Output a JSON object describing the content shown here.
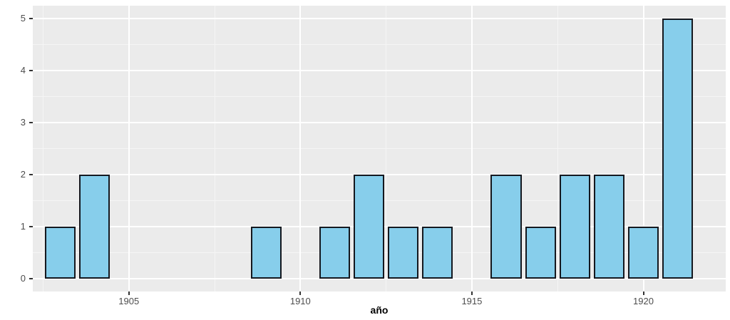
{
  "chart": {
    "colors": {
      "panel_bg": "#EBEBEB",
      "grid_major": "#FFFFFF",
      "grid_minor": "#F5F5F5",
      "bar_fill": "#87CEEB",
      "bar_stroke": "#14181F",
      "tick_mark": "#333333",
      "tick_label": "#4D4D4D",
      "axis_title": "#000000"
    }
  },
  "chart_data": {
    "type": "bar",
    "title": "",
    "xlabel": "año",
    "ylabel": "",
    "x": [
      1903,
      1904,
      1909,
      1911,
      1912,
      1913,
      1914,
      1916,
      1917,
      1918,
      1919,
      1920,
      1921
    ],
    "values": [
      1,
      2,
      1,
      1,
      2,
      1,
      1,
      2,
      1,
      2,
      2,
      1,
      5
    ],
    "bar_width": 0.9,
    "xlim": [
      1902.2,
      1922.4
    ],
    "ylim": [
      -0.25,
      5.25
    ],
    "x_ticks": [
      1905,
      1910,
      1915,
      1920
    ],
    "y_ticks": [
      0,
      1,
      2,
      3,
      4,
      5
    ],
    "x_minor_ticks": [
      1902.5,
      1907.5,
      1912.5,
      1917.5
    ],
    "y_minor_ticks": [
      0.5,
      1.5,
      2.5,
      3.5,
      4.5
    ],
    "grid": true,
    "legend": false
  }
}
